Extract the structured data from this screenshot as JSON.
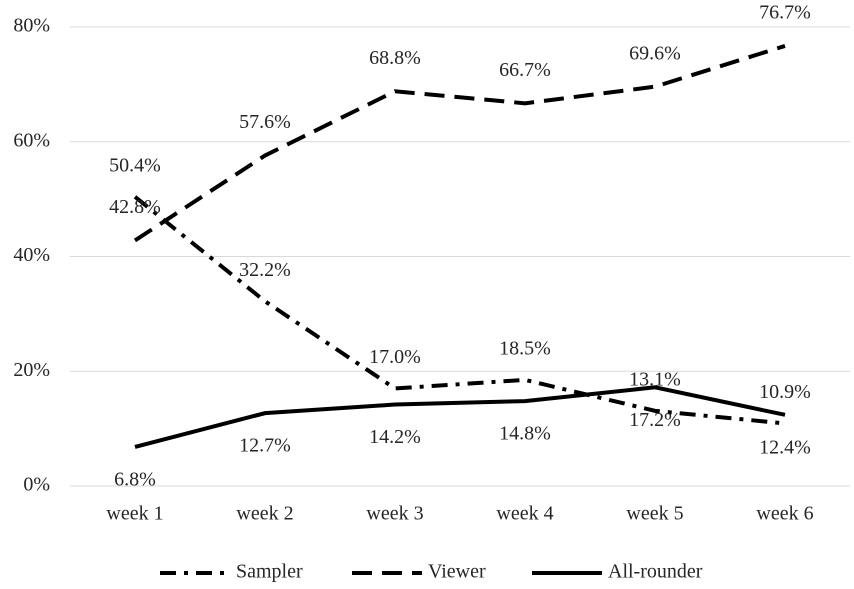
{
  "chart_data": {
    "type": "line",
    "categories": [
      "week 1",
      "week 2",
      "week 3",
      "week 4",
      "week 5",
      "week 6"
    ],
    "series": [
      {
        "name": "Sampler",
        "color": "#000000",
        "dash": "dashdot",
        "values": [
          50.4,
          32.2,
          17.0,
          18.5,
          13.1,
          10.9
        ],
        "value_labels": [
          "50.4%",
          "32.2%",
          "17.0%",
          "18.5%",
          "13.1%",
          "10.9%"
        ]
      },
      {
        "name": "Viewer",
        "color": "#000000",
        "dash": "dashed",
        "values": [
          42.8,
          57.6,
          68.8,
          66.7,
          69.6,
          76.7
        ],
        "value_labels": [
          "42.8%",
          "57.6%",
          "68.8%",
          "66.7%",
          "69.6%",
          "76.7%"
        ]
      },
      {
        "name": "All-rounder",
        "color": "#000000",
        "dash": "solid",
        "values": [
          6.8,
          12.7,
          14.2,
          14.8,
          17.2,
          12.4
        ],
        "value_labels": [
          "6.8%",
          "12.7%",
          "14.2%",
          "14.8%",
          "17.2%",
          "12.4%"
        ]
      }
    ],
    "ylim": [
      0,
      80
    ],
    "yticks": [
      {
        "value": 0,
        "label": "0%"
      },
      {
        "value": 20,
        "label": "20%"
      },
      {
        "value": 40,
        "label": "40%"
      },
      {
        "value": 60,
        "label": "60%"
      },
      {
        "value": 80,
        "label": "80%"
      }
    ],
    "grid": true,
    "legend": "bottom"
  }
}
